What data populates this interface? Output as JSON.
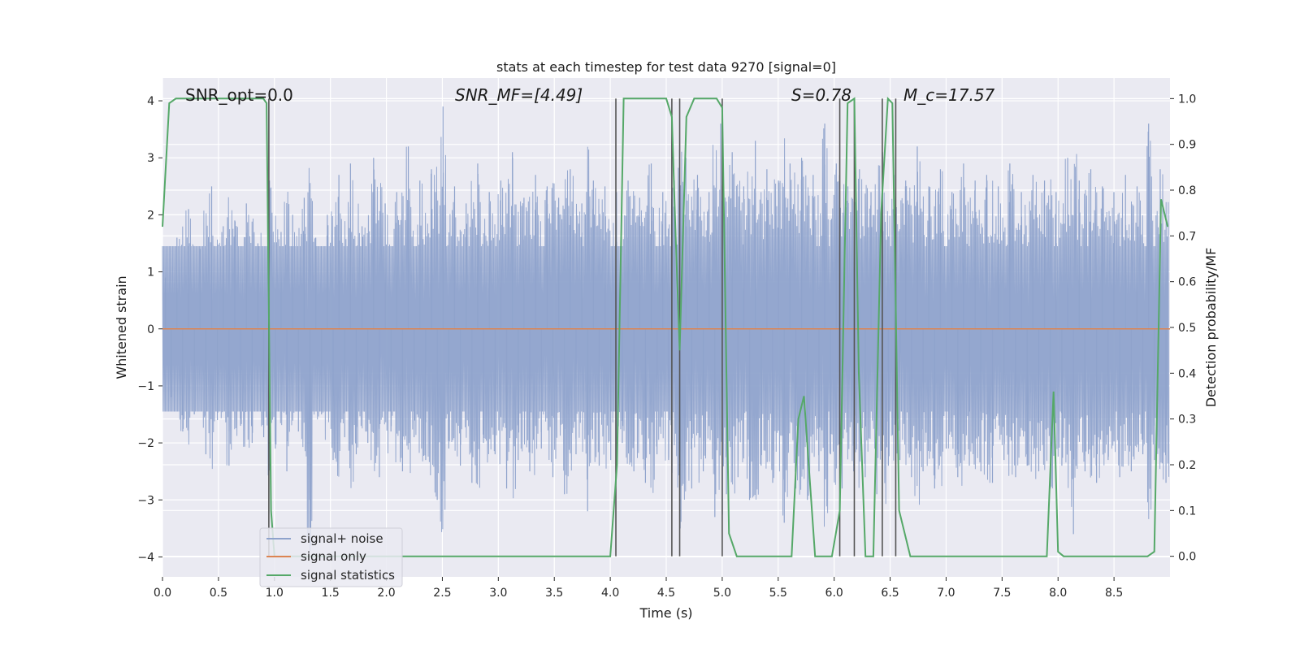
{
  "chart_data": {
    "type": "line",
    "title": "stats at each timestep for test data 9270 [signal=0]",
    "xlabel": "Time (s)",
    "ylabel": "Whitened strain",
    "y2label": "Detection probability/MF",
    "xlim": [
      0.0,
      9.0
    ],
    "ylim": [
      -4.35,
      4.4
    ],
    "y2lim": [
      -0.045,
      1.045
    ],
    "xticks": [
      0.0,
      0.5,
      1.0,
      1.5,
      2.0,
      2.5,
      3.0,
      3.5,
      4.0,
      4.5,
      5.0,
      5.5,
      6.0,
      6.5,
      7.0,
      7.5,
      8.0,
      8.5
    ],
    "xtick_labels": [
      "0.0",
      "0.5",
      "1.0",
      "1.5",
      "2.0",
      "2.5",
      "3.0",
      "3.5",
      "4.0",
      "4.5",
      "5.0",
      "5.5",
      "6.0",
      "6.5",
      "7.0",
      "7.5",
      "8.0",
      "8.5"
    ],
    "yticks": [
      -4,
      -3,
      -2,
      -1,
      0,
      1,
      2,
      3,
      4
    ],
    "ytick_labels": [
      "−4",
      "−3",
      "−2",
      "−1",
      "0",
      "1",
      "2",
      "3",
      "4"
    ],
    "y2ticks": [
      0.0,
      0.1,
      0.2,
      0.3,
      0.4,
      0.5,
      0.6,
      0.7,
      0.8,
      0.9,
      1.0
    ],
    "y2tick_labels": [
      "0.0",
      "0.1",
      "0.2",
      "0.3",
      "0.4",
      "0.5",
      "0.6",
      "0.7",
      "0.8",
      "0.9",
      "1.0"
    ],
    "grid": true,
    "legend_position": "lower-left",
    "annotations": {
      "snr_opt": "SNR_opt=0.0",
      "snr_mf": "SNR_MF=[4.49]",
      "s_value": "S=0.78",
      "mc_value": "M_c=17.57"
    },
    "series": [
      {
        "name": "signal+ noise",
        "color": "#8fa3cc",
        "note_sampling": "dense noise, approx 1.75 envelope with spikes up to 4",
        "t_range": [
          0.0,
          8.99
        ],
        "values": [
          0.9,
          -1.2,
          1.6,
          -1.8,
          2.1,
          -1.5,
          1.4,
          -2.2,
          2.5,
          -1.6,
          1.8,
          -2.4,
          1.9,
          -1.7,
          2.2,
          -2.0,
          1.5,
          -1.9,
          2.6,
          -2.1,
          1.7,
          -2.5,
          2.0,
          -1.8,
          2.3,
          -3.9,
          1.6,
          -1.5,
          2.0,
          -2.3,
          2.7,
          -1.9,
          2.9,
          -2.2,
          1.8,
          -2.0,
          3.0,
          -2.6,
          2.2,
          -1.8,
          2.4,
          -2.5,
          3.2,
          -1.9,
          2.6,
          -2.3,
          2.8,
          -3.0,
          3.9,
          -2.1,
          2.5,
          -2.4,
          2.2,
          -2.7,
          2.9,
          -2.0,
          2.4,
          -2.2,
          2.6,
          -2.8,
          3.1,
          -2.3,
          2.3,
          -2.5,
          2.7,
          -2.1,
          2.5,
          -2.6,
          2.3,
          -2.9,
          2.8,
          -2.2,
          2.2,
          -3.2,
          2.6,
          -2.4,
          2.5,
          -2.3,
          2.4,
          -2.0,
          2.6,
          -2.5,
          2.3,
          -2.7,
          2.9,
          -2.2,
          2.4,
          -2.3,
          2.6,
          -3.5,
          3.0,
          -2.8,
          2.7,
          -2.5,
          2.4,
          -3.3,
          3.6,
          -2.9,
          3.1,
          -2.6,
          2.5,
          -3.0,
          3.3,
          -2.4,
          2.8,
          -2.7,
          2.6,
          -3.4,
          2.9,
          -2.8,
          3.0,
          -3.0,
          2.7,
          -2.5,
          3.6,
          -2.2,
          2.9,
          -2.8,
          2.5,
          -2.5,
          2.8,
          -2.6,
          2.4,
          -2.9,
          3.1,
          -2.4,
          2.7,
          -2.3,
          2.6,
          -2.6,
          3.2,
          -2.5,
          2.5,
          -2.8,
          2.8,
          -2.1,
          2.4,
          -2.6,
          2.9,
          -2.4,
          2.6,
          -2.5,
          2.7,
          -2.7,
          2.5,
          -2.3,
          2.9,
          -2.6,
          2.4,
          -2.4,
          2.7,
          -2.5,
          2.6,
          -2.8,
          2.4,
          -2.4,
          3.0,
          -3.6,
          2.6,
          -2.5,
          2.8,
          -2.7,
          2.5,
          -2.3,
          2.4,
          -2.6,
          2.7,
          -2.5,
          2.5,
          -2.2,
          3.6,
          -2.3,
          2.8,
          -2.7
        ]
      },
      {
        "name": "signal only",
        "color": "#dd8452",
        "values_const": 0.0
      },
      {
        "name": "signal statistics",
        "color": "#55a868",
        "axis": "right",
        "t": [
          0.0,
          0.06,
          0.12,
          0.9,
          0.93,
          0.97,
          1.0,
          1.5,
          2.0,
          2.5,
          3.0,
          3.5,
          4.0,
          4.06,
          4.12,
          4.5,
          4.55,
          4.58,
          4.62,
          4.68,
          4.75,
          4.95,
          5.0,
          5.06,
          5.13,
          5.5,
          5.62,
          5.68,
          5.73,
          5.83,
          5.98,
          6.05,
          6.12,
          6.18,
          6.22,
          6.28,
          6.35,
          6.42,
          6.48,
          6.52,
          6.58,
          6.68,
          7.0,
          7.5,
          7.9,
          7.96,
          8.0,
          8.05,
          8.12,
          8.5,
          8.8,
          8.86,
          8.92,
          8.98
        ],
        "values": [
          0.72,
          0.99,
          1.0,
          1.0,
          0.99,
          0.1,
          0.0,
          0.0,
          0.0,
          0.0,
          0.0,
          0.0,
          0.0,
          0.2,
          1.0,
          1.0,
          0.96,
          0.73,
          0.45,
          0.96,
          1.0,
          1.0,
          0.98,
          0.05,
          0.0,
          0.0,
          0.0,
          0.3,
          0.35,
          0.0,
          0.0,
          0.1,
          0.99,
          1.0,
          0.4,
          0.0,
          0.0,
          0.75,
          1.0,
          0.99,
          0.1,
          0.0,
          0.0,
          0.0,
          0.0,
          0.36,
          0.01,
          0.0,
          0.0,
          0.0,
          0.0,
          0.01,
          0.78,
          0.72
        ]
      }
    ],
    "vlines": [
      0.95,
      4.05,
      4.55,
      4.62,
      5.0,
      6.05,
      6.18,
      6.43,
      6.55
    ]
  },
  "legend": {
    "items": [
      {
        "label": "signal+ noise",
        "color": "#8fa3cc"
      },
      {
        "label": "signal only",
        "color": "#dd8452"
      },
      {
        "label": "signal statistics",
        "color": "#55a868"
      }
    ]
  }
}
